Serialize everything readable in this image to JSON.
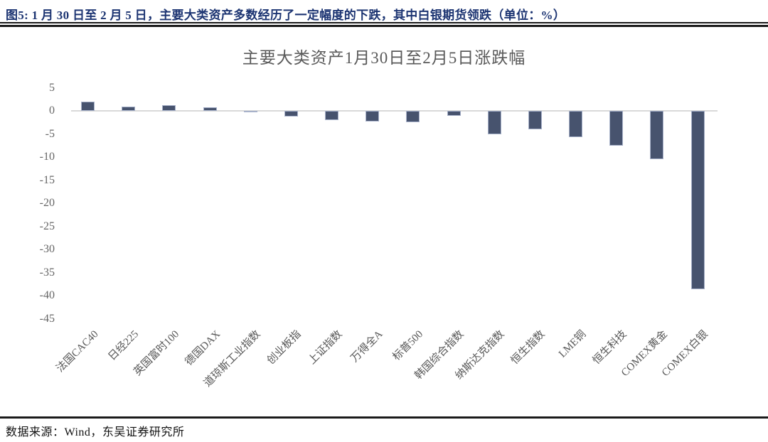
{
  "figure_header": {
    "title": "图5:  1 月 30 日至 2 月 5 日，主要大类资产多数经历了一定幅度的下跌，其中白银期货领跌（单位：%）"
  },
  "chart_data": {
    "type": "bar",
    "title": "主要大类资产1月30日至2月5日涨跌幅",
    "categories": [
      "法国CAC40",
      "日经225",
      "英国富时100",
      "德国DAX",
      "道琼斯工业指数",
      "创业板指",
      "上证指数",
      "万得全A",
      "标普500",
      "韩国综合指数",
      "纳斯达克指数",
      "恒生指数",
      "LME铜",
      "恒生科技",
      "COMEX黄金",
      "COMEX白银"
    ],
    "values": [
      2.0,
      0.9,
      1.3,
      0.8,
      -0.3,
      -1.3,
      -2.0,
      -2.3,
      -2.5,
      -1.1,
      -5.0,
      -4.0,
      -5.7,
      -7.6,
      -10.4,
      -38.6
    ],
    "unit": "%",
    "ylim": [
      -45,
      5
    ],
    "yticks": [
      5,
      0,
      -5,
      -10,
      -15,
      -20,
      -25,
      -30,
      -35,
      -40,
      -45
    ],
    "grid": "off",
    "legend": "none",
    "bar_color": "#47536e",
    "bar_border_color": "#a8b2ca",
    "axis_line_color": "#d9d9d9",
    "text_color": "#595959"
  },
  "footer": {
    "source": "数据来源：Wind，东吴证券研究所"
  }
}
